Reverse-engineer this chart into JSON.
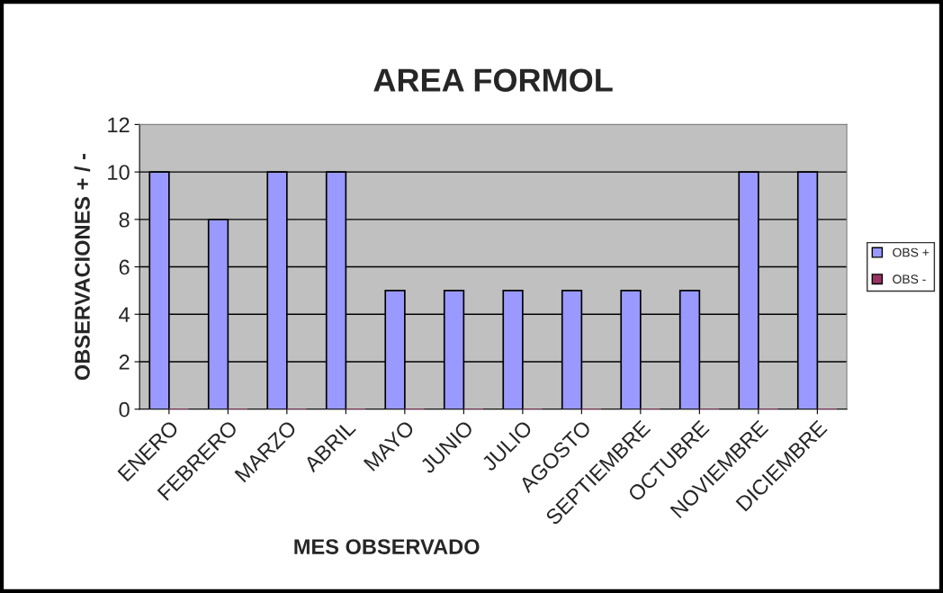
{
  "chart_data": {
    "type": "bar",
    "title": "AREA FORMOL",
    "xlabel": "MES OBSERVADO",
    "ylabel": "OBSERVACIONES + / -",
    "categories": [
      "ENERO",
      "FEBRERO",
      "MARZO",
      "ABRIL",
      "MAYO",
      "JUNIO",
      "JULIO",
      "AGOSTO",
      "SEPTIEMBRE",
      "OCTUBRE",
      "NOVIEMBRE",
      "DICIEMBRE"
    ],
    "series": [
      {
        "name": "OBS +",
        "color": "#9999ff",
        "values": [
          10,
          8,
          10,
          10,
          5,
          5,
          5,
          5,
          5,
          5,
          10,
          10
        ]
      },
      {
        "name": "OBS -",
        "color": "#993366",
        "values": [
          0,
          0,
          0,
          0,
          0,
          0,
          0,
          0,
          0,
          0,
          0,
          0
        ]
      }
    ],
    "ylim": [
      0,
      12
    ],
    "yticks": [
      0,
      2,
      4,
      6,
      8,
      10,
      12
    ],
    "grid": "y",
    "legend": "right"
  }
}
